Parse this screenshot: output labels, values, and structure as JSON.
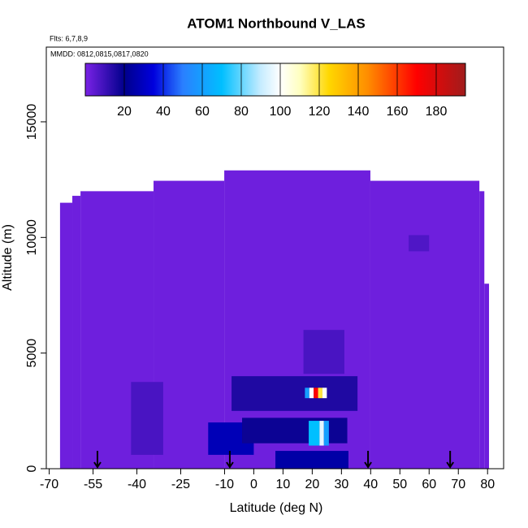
{
  "chart_data": {
    "type": "curtain",
    "title": "ATOM1 Northbound V_LAS",
    "flights_label": "Flts: 6,7,8,9",
    "dates_label": "MMDD: 0812,0815,0817,0820",
    "x_label": "Latitude (deg N)",
    "y_label": "Altitude (m)",
    "xlim": [
      -71,
      85.5
    ],
    "ylim": [
      0,
      18230
    ],
    "xticks": [
      -70,
      -55,
      -40,
      -25,
      -10,
      0,
      10,
      20,
      30,
      40,
      50,
      60,
      70,
      80
    ],
    "yticks": [
      0,
      5000,
      10000,
      15000
    ],
    "clim": [
      0,
      195
    ],
    "cbar_ticks": [
      20,
      40,
      60,
      80,
      100,
      120,
      140,
      160,
      180
    ],
    "colorscale": [
      [
        0,
        "#7a22e6"
      ],
      [
        20,
        "#00008b"
      ],
      [
        35,
        "#0000dd"
      ],
      [
        50,
        "#2a7fff"
      ],
      [
        70,
        "#00bfff"
      ],
      [
        90,
        "#c6ecff"
      ],
      [
        100,
        "#ffffff"
      ],
      [
        110,
        "#ffffc0"
      ],
      [
        125,
        "#ffd700"
      ],
      [
        145,
        "#ff8c00"
      ],
      [
        170,
        "#ff0000"
      ],
      [
        195,
        "#a01c1c"
      ]
    ],
    "cells": [
      {
        "lat": [
          -66.3,
          -62.1
        ],
        "alt": [
          0,
          11500
        ],
        "value": 2
      },
      {
        "lat": [
          -62.1,
          -59.3
        ],
        "alt": [
          0,
          11800
        ],
        "value": 2
      },
      {
        "lat": [
          -59.3,
          -34.3
        ],
        "alt": [
          0,
          12000
        ],
        "value": 2
      },
      {
        "lat": [
          -34.3,
          -10.1
        ],
        "alt": [
          0,
          12450
        ],
        "value": 2
      },
      {
        "lat": [
          -10.1,
          39.9
        ],
        "alt": [
          0,
          12900
        ],
        "value": 2
      },
      {
        "lat": [
          39.9,
          77.2
        ],
        "alt": [
          0,
          12450
        ],
        "value": 2
      },
      {
        "lat": [
          77.2,
          78.9
        ],
        "alt": [
          0,
          12000
        ],
        "value": 2
      },
      {
        "lat": [
          78.9,
          80.5
        ],
        "alt": [
          0,
          8000
        ],
        "value": 2
      },
      {
        "lat": [
          -42,
          -31
        ],
        "alt": [
          600,
          3750
        ],
        "value": 8
      },
      {
        "lat": [
          17,
          31
        ],
        "alt": [
          4100,
          6000
        ],
        "value": 8
      },
      {
        "lat": [
          53,
          60
        ],
        "alt": [
          9400,
          10100
        ],
        "value": 7
      },
      {
        "lat": [
          -15.6,
          0
        ],
        "alt": [
          600,
          2000
        ],
        "value": 28
      },
      {
        "lat": [
          -7.6,
          35.5
        ],
        "alt": [
          2500,
          4000
        ],
        "value": 15
      },
      {
        "lat": [
          -4,
          32
        ],
        "alt": [
          1100,
          2200
        ],
        "value": 18
      },
      {
        "lat": [
          7.4,
          32.4
        ],
        "alt": [
          0,
          770
        ],
        "value": 25
      },
      {
        "lat": [
          18.8,
          22.5
        ],
        "alt": [
          1000,
          2070
        ],
        "value": 70
      },
      {
        "lat": [
          22.5,
          24
        ],
        "alt": [
          1000,
          2070
        ],
        "value": 95
      },
      {
        "lat": [
          24,
          25.7
        ],
        "alt": [
          1000,
          2070
        ],
        "value": 60
      },
      {
        "lat": [
          17.5,
          19
        ],
        "alt": [
          3050,
          3500
        ],
        "value": 60
      },
      {
        "lat": [
          19,
          20.5
        ],
        "alt": [
          3050,
          3500
        ],
        "value": 100
      },
      {
        "lat": [
          20.5,
          22
        ],
        "alt": [
          3050,
          3500
        ],
        "value": 170
      },
      {
        "lat": [
          22,
          23.5
        ],
        "alt": [
          3050,
          3500
        ],
        "value": 120
      },
      {
        "lat": [
          23.5,
          25
        ],
        "alt": [
          3050,
          3500
        ],
        "value": 100
      }
    ],
    "arrows_lat": [
      -53.5,
      -8.2,
      39.1,
      67.2
    ]
  }
}
